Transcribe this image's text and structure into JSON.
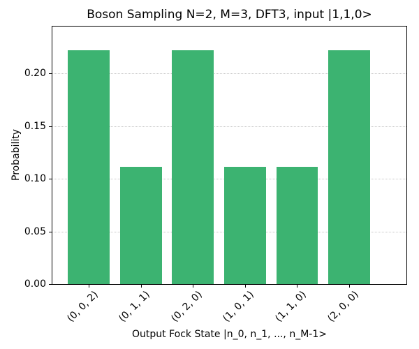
{
  "chart_data": {
    "type": "bar",
    "title": "Boson Sampling N=2, M=3, DFT3, input |1,1,0>",
    "xlabel": "Output Fock State |n_0, n_1, ..., n_M-1>",
    "ylabel": "Probability",
    "categories": [
      "(0, 0, 2)",
      "(0, 1, 1)",
      "(0, 2, 0)",
      "(1, 0, 1)",
      "(1, 1, 0)",
      "(2, 0, 0)"
    ],
    "values": [
      0.2222,
      0.1111,
      0.2222,
      0.1111,
      0.1111,
      0.2222
    ],
    "yticks": [
      0,
      0.05,
      0.1,
      0.15,
      0.2
    ],
    "ytick_labels": [
      "0.00",
      "0.05",
      "0.10",
      "0.15",
      "0.20"
    ],
    "ylim": [
      0,
      0.2444
    ],
    "bar_color": "#3cb371",
    "grid": "horizontal-dotted",
    "grid_color": "#c6c6c6",
    "legend": "none",
    "x_tick_rotation_deg": 45
  }
}
